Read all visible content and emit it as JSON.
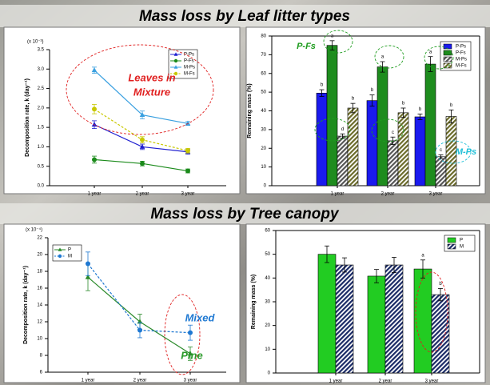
{
  "section_titles": [
    "Mass loss by Leaf litter types",
    "Mass loss by Tree canopy"
  ],
  "chart_data": [
    {
      "type": "line",
      "y_multiplier": "(x 10⁻³)",
      "ylabel": "Decomposition rate, k (day⁻¹)",
      "categories": [
        "1 year",
        "2 year",
        "3 year"
      ],
      "ylim": [
        0,
        3.5
      ],
      "yticks": [
        {
          "value": 0,
          "label": "0.0"
        },
        {
          "value": 0.5,
          "label": "0.5"
        },
        {
          "value": 1,
          "label": "1.0"
        },
        {
          "value": 1.5,
          "label": "1.5"
        },
        {
          "value": 2,
          "label": "2.0"
        },
        {
          "value": 2.5,
          "label": "2.5"
        },
        {
          "value": 3,
          "label": "3.0"
        },
        {
          "value": 3.5,
          "label": "3.5"
        }
      ],
      "series": [
        {
          "name": "P-Ps",
          "color": "#1f1fd0",
          "marker": "triangle",
          "linestyle": "solid",
          "values": [
            1.57,
            1.0,
            0.87
          ],
          "errors": [
            0.1,
            0.07,
            0.06
          ]
        },
        {
          "name": "P-Fs",
          "color": "#1a8a1a",
          "marker": "circle",
          "linestyle": "solid",
          "values": [
            0.67,
            0.57,
            0.38
          ],
          "errors": [
            0.09,
            0.06,
            0.05
          ]
        },
        {
          "name": "M-Ps",
          "color": "#3aa0e0",
          "marker": "triangle",
          "linestyle": "solid",
          "values": [
            2.97,
            1.82,
            1.6
          ],
          "errors": [
            0.08,
            0.1,
            0.05
          ]
        },
        {
          "name": "M-Fs",
          "color": "#c8c800",
          "marker": "circle",
          "linestyle": "dashed",
          "values": [
            1.97,
            1.18,
            0.9
          ],
          "errors": [
            0.12,
            0.08,
            0.06
          ]
        }
      ],
      "annotations": [
        "Leaves in",
        "Mixture"
      ]
    },
    {
      "type": "bar",
      "ylabel": "Remaining mass (%)",
      "categories": [
        "1 year",
        "2 year",
        "3 year"
      ],
      "ylim": [
        0,
        80
      ],
      "yticks": [
        0,
        10,
        20,
        30,
        40,
        50,
        60,
        70,
        80
      ],
      "series": [
        {
          "name": "P-Ps",
          "color": "#1a1aee",
          "hatch": false,
          "values": [
            49.5,
            45.5,
            36.8
          ],
          "errors": [
            1.8,
            3,
            1.5
          ],
          "labels": [
            "b",
            "b",
            "b"
          ]
        },
        {
          "name": "P-Fs",
          "color": "#1e8c1e",
          "hatch": false,
          "values": [
            75,
            63.5,
            65
          ],
          "errors": [
            2.5,
            2.8,
            4
          ],
          "labels": [
            "a",
            "a",
            "a"
          ]
        },
        {
          "name": "M-Ps",
          "color": "#555555",
          "hatch": true,
          "values": [
            26.5,
            24,
            15.5
          ],
          "errors": [
            1.2,
            2,
            1
          ],
          "labels": [
            "d",
            "c",
            "c"
          ]
        },
        {
          "name": "M-Fs",
          "color": "#6b6b2a",
          "hatch": true,
          "values": [
            41.5,
            39,
            37
          ],
          "errors": [
            2.5,
            2.5,
            3.5
          ],
          "labels": [
            "b",
            "b",
            "b"
          ]
        }
      ],
      "annotations": [
        "P-Fs",
        "M-Ps"
      ]
    },
    {
      "type": "line",
      "y_multiplier": "(x 10⁻⁴)",
      "ylabel": "Decomposition rate, k (day⁻¹)",
      "categories": [
        "1 year",
        "2 year",
        "3 year"
      ],
      "ylim": [
        6,
        22
      ],
      "yticks": [
        6,
        8,
        10,
        12,
        14,
        16,
        18,
        20,
        22
      ],
      "series": [
        {
          "name": "P",
          "color": "#2a8a2a",
          "marker": "triangle",
          "linestyle": "solid",
          "values": [
            17.3,
            12.0,
            8.2
          ],
          "errors": [
            1.6,
            0.9,
            0.8
          ]
        },
        {
          "name": "M",
          "color": "#1e78d2",
          "marker": "circle",
          "linestyle": "dashed",
          "values": [
            18.9,
            11.0,
            10.7
          ],
          "errors": [
            1.4,
            0.9,
            0.9
          ]
        }
      ],
      "annotations": [
        "Mixed",
        "Pine"
      ]
    },
    {
      "type": "bar",
      "ylabel": "Remaining mass (%)",
      "categories": [
        "1 year",
        "2 year",
        "3 year"
      ],
      "ylim": [
        0,
        60
      ],
      "yticks": [
        0,
        10,
        20,
        30,
        40,
        50,
        60
      ],
      "series": [
        {
          "name": "P",
          "color": "#22cc22",
          "hatch": false,
          "values": [
            50,
            40.8,
            43.8
          ],
          "errors": [
            3.5,
            2.8,
            3.8
          ],
          "labels": [
            null,
            null,
            "a"
          ]
        },
        {
          "name": "M",
          "color": "#1a2a66",
          "hatch": true,
          "values": [
            45.5,
            45.5,
            33
          ],
          "errors": [
            3,
            3.2,
            2.6
          ],
          "labels": [
            null,
            null,
            "b"
          ]
        }
      ]
    }
  ]
}
